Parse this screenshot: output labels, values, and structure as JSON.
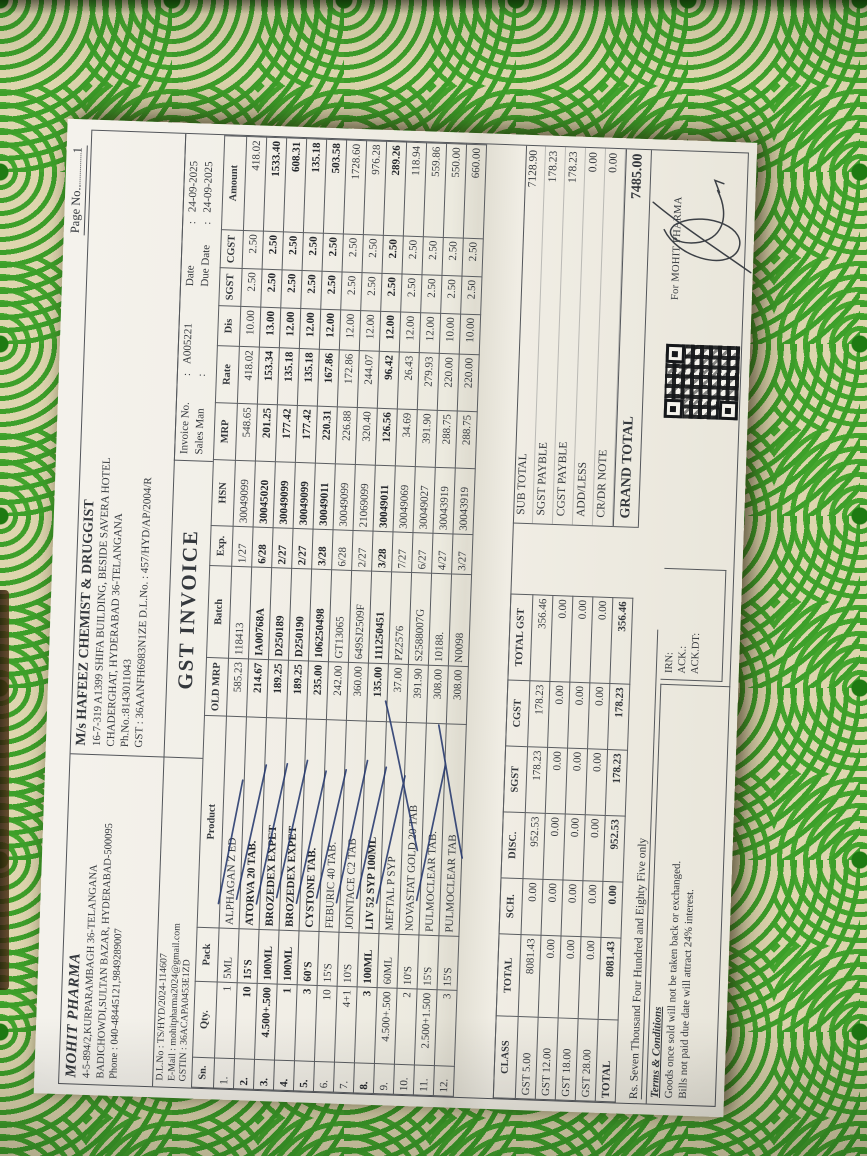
{
  "scene": {
    "surface": "green-swirl-cloth",
    "colors": {
      "cloth_beige": "#ddd6ae",
      "pattern_green": "#3da02a",
      "wood_brown": "#5e3a1a",
      "ink_blue": "#25386e"
    }
  },
  "invoice": {
    "page_label": "Page No.",
    "page_no": "1",
    "seller": {
      "name": "MOHIT PHARMA",
      "addr1": "4-5-894/2,KURPARAMBAGH 36-TELANGANA",
      "addr2": "BADICHOWDI,SULTAN BAZAR, HYDERABAD-500095",
      "phone": "Phone : 040-48445121,9849289007",
      "dl": "D.L.No : TS/HYD/2024-114607",
      "email": "E-Mail : mohitpharma2024@gmail.com",
      "gstin": "GSTIN : 36ACAPA0453E1ZD"
    },
    "buyer": {
      "name": "M/s HAFEEZ CHEMIST & DRUGGIST",
      "addr1": "16-7-319 A1399 SHIFA BUILDING, BESIDE SAVERA HOTEL",
      "addr2": "CHADERGHAT, HYDERABAD 36-TELANGANA",
      "phone": "Ph.No.:8143011043",
      "gst_line": "GST : 36AANFH6983N1ZE  D.L.No. : 457/HYD/AP/2004/R"
    },
    "title": "GST INVOICE",
    "meta": {
      "invoice_no_label": "Invoice No.",
      "invoice_no": "A005221",
      "sales_man_label": "Sales Man",
      "sales_man": "",
      "date_label": "Date",
      "date": "24-09-2025",
      "due_date_label": "Due Date",
      "due_date": "24-09-2025",
      "colon": ":"
    },
    "table": {
      "headers": [
        "Sn.",
        "Qty.",
        "Pack",
        "Product",
        "OLD MRP",
        "Batch",
        "Exp.",
        "HSN",
        "MRP",
        "Rate",
        "Dis",
        "SGST",
        "CGST",
        "Amount"
      ],
      "rows": [
        {
          "bold": false,
          "cells": [
            "1.",
            "1",
            "5ML",
            "ALPHAGAN Z ED",
            "585.23",
            "118413",
            "1/27",
            "30049099",
            "548.65",
            "418.02",
            "10.00",
            "2.50",
            "2.50",
            "418.02"
          ]
        },
        {
          "bold": true,
          "cells": [
            "2.",
            "10",
            "15'S",
            "ATORVA 20 TAB.",
            "214.67",
            "IA00768A",
            "6/28",
            "30045020",
            "201.25",
            "153.34",
            "13.00",
            "2.50",
            "2.50",
            "1533.40"
          ]
        },
        {
          "bold": true,
          "cells": [
            "3.",
            "4.500+.500",
            "100ML",
            "BROZEDEX EXPET",
            "189.25",
            "D250189",
            "2/27",
            "30049099",
            "177.42",
            "135.18",
            "12.00",
            "2.50",
            "2.50",
            "608.31"
          ]
        },
        {
          "bold": true,
          "cells": [
            "4.",
            "1",
            "100ML",
            "BROZEDEX EXPET",
            "189.25",
            "D250190",
            "2/27",
            "30049099",
            "177.42",
            "135.18",
            "12.00",
            "2.50",
            "2.50",
            "135.18"
          ]
        },
        {
          "bold": true,
          "cells": [
            "5.",
            "3",
            "60'S",
            "CYSTONE TAB.",
            "235.00",
            "106250498",
            "3/28",
            "30049011",
            "220.31",
            "167.86",
            "12.00",
            "2.50",
            "2.50",
            "503.58"
          ]
        },
        {
          "bold": false,
          "cells": [
            "6.",
            "10",
            "15'S",
            "FEBURIC 40 TAB.",
            "242.00",
            "GT13065",
            "6/28",
            "30049099",
            "226.88",
            "172.86",
            "12.00",
            "2.50",
            "2.50",
            "1728.60"
          ]
        },
        {
          "bold": false,
          "cells": [
            "7.",
            "4+1",
            "10'S",
            "JOINTACE C2 TAB",
            "360.00",
            "649SJ2509F",
            "2/27",
            "21069099",
            "320.40",
            "244.07",
            "12.00",
            "2.50",
            "2.50",
            "976.28"
          ]
        },
        {
          "bold": true,
          "cells": [
            "8.",
            "3",
            "100ML",
            "LIV 52 SYP 100ML",
            "135.00",
            "111250451",
            "3/28",
            "30049011",
            "126.56",
            "96.42",
            "12.00",
            "2.50",
            "2.50",
            "289.26"
          ]
        },
        {
          "bold": false,
          "cells": [
            "9.",
            "4.500+.500",
            "60ML",
            "MEFTAL P SYP",
            "37.00",
            "PZ2576",
            "7/27",
            "30049069",
            "34.69",
            "26.43",
            "12.00",
            "2.50",
            "2.50",
            "118.94"
          ]
        },
        {
          "bold": false,
          "cells": [
            "10.",
            "2",
            "10'S",
            "NOVASTAT GOLD 20 TAB",
            "391.90",
            "S2588007G",
            "6/27",
            "30049027",
            "391.90",
            "279.93",
            "12.00",
            "2.50",
            "2.50",
            "559.86"
          ]
        },
        {
          "bold": false,
          "cells": [
            "11.",
            "2.500+1.500",
            "15'S",
            "PULMOCLEAR TAB.",
            "308.00",
            "10188.",
            "4/27",
            "30043919",
            "288.75",
            "220.00",
            "10.00",
            "2.50",
            "2.50",
            "550.00"
          ]
        },
        {
          "bold": false,
          "cells": [
            "12.",
            "3",
            "15'S",
            "PULMOCLEAR TAB",
            "308.00",
            "N0098",
            "3/27",
            "30043919",
            "288.75",
            "220.00",
            "10.00",
            "2.50",
            "2.50",
            "660.00"
          ]
        }
      ]
    },
    "summary": {
      "rows": [
        {
          "label": "SUB TOTAL",
          "value": "7128.90"
        },
        {
          "label": "SGST PAYBLE",
          "value": "178.23"
        },
        {
          "label": "CGST PAYBLE",
          "value": "178.23"
        },
        {
          "label": "ADD/LESS",
          "value": "0.00"
        },
        {
          "label": "CR/DR NOTE",
          "value": "0.00"
        }
      ],
      "grand_label": "GRAND TOTAL",
      "grand_value": "7485.00"
    },
    "class_table": {
      "headers": [
        "CLASS",
        "TOTAL",
        "SCH.",
        "DISC.",
        "SGST",
        "CGST",
        "TOTAL GST"
      ],
      "rows": [
        [
          "GST  5.00",
          "8081.43",
          "0.00",
          "952.53",
          "178.23",
          "178.23",
          "356.46"
        ],
        [
          "GST 12.00",
          "0.00",
          "0.00",
          "0.00",
          "0.00",
          "0.00",
          "0.00"
        ],
        [
          "GST 18.00",
          "0.00",
          "0.00",
          "0.00",
          "0.00",
          "0.00",
          "0.00"
        ],
        [
          "GST 28.00",
          "0.00",
          "0.00",
          "0.00",
          "0.00",
          "0.00",
          "0.00"
        ],
        [
          "TOTAL",
          "8081.43",
          "0.00",
          "952.53",
          "178.23",
          "178.23",
          "356.46"
        ]
      ]
    },
    "amount_words": "Rs. Seven Thousand Four Hundred and Eighty Five only",
    "terms": {
      "title": "Terms & Conditions",
      "lines": [
        "Goods once sold will not be taken back or exchanged.",
        "Bills not paid due date will attract 24% interest."
      ]
    },
    "irn_lines": [
      "IRN:",
      "ACK.:",
      "ACK.DT:"
    ],
    "signature_for": "For MOHIT PHARMA"
  }
}
